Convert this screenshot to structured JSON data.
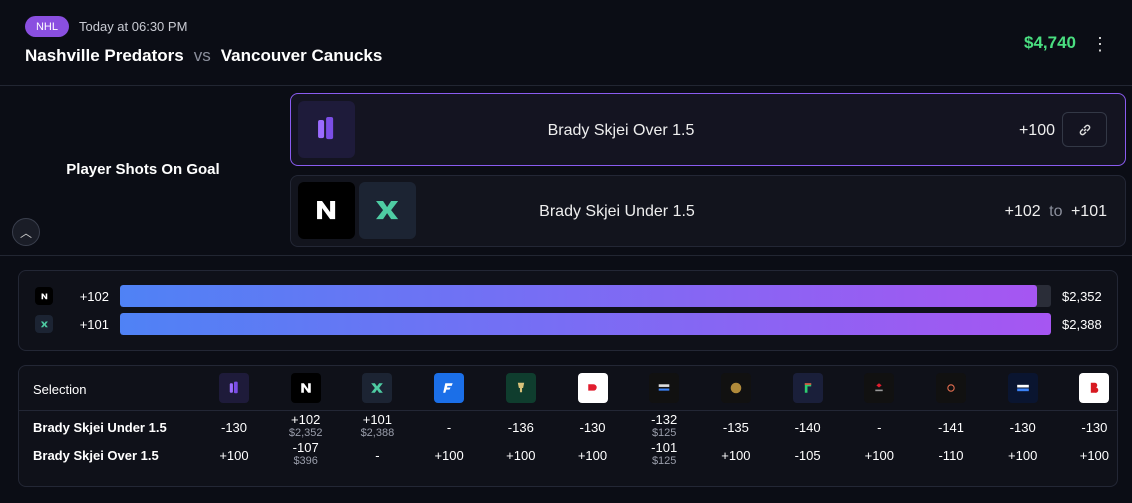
{
  "header": {
    "league": "NHL",
    "time": "Today at 06:30 PM",
    "home": "Nashville Predators",
    "vs": "vs",
    "away": "Vancouver Canucks",
    "amount": "$4,740"
  },
  "market": {
    "title": "Player Shots On Goal",
    "picks": [
      {
        "label": "Brady Skjei Over 1.5",
        "odds": "+100"
      },
      {
        "label": "Brady Skjei Under 1.5",
        "odds_from": "+102",
        "to": "to",
        "odds_to": "+101"
      }
    ]
  },
  "stakes": [
    {
      "odds": "+102",
      "value": 2352,
      "label": "$2,352"
    },
    {
      "odds": "+101",
      "value": 2388,
      "label": "$2,388"
    }
  ],
  "table": {
    "header": "Selection",
    "rows": [
      {
        "label": "Brady Skjei Under 1.5",
        "cells": [
          {
            "odds": "-130"
          },
          {
            "odds": "+102",
            "stake": "$2,352"
          },
          {
            "odds": "+101",
            "stake": "$2,388"
          },
          {
            "odds": "-"
          },
          {
            "odds": "-136"
          },
          {
            "odds": "-130"
          },
          {
            "odds": "-132",
            "stake": "$125"
          },
          {
            "odds": "-135"
          },
          {
            "odds": "-140"
          },
          {
            "odds": "-"
          },
          {
            "odds": "-141"
          },
          {
            "odds": "-130"
          },
          {
            "odds": "-130"
          }
        ]
      },
      {
        "label": "Brady Skjei Over 1.5",
        "cells": [
          {
            "odds": "+100"
          },
          {
            "odds": "-107",
            "stake": "$396"
          },
          {
            "odds": "-"
          },
          {
            "odds": "+100"
          },
          {
            "odds": "+100"
          },
          {
            "odds": "+100"
          },
          {
            "odds": "-101",
            "stake": "$125"
          },
          {
            "odds": "+100"
          },
          {
            "odds": "-105"
          },
          {
            "odds": "+100"
          },
          {
            "odds": "-110"
          },
          {
            "odds": "+100"
          },
          {
            "odds": "+100"
          }
        ]
      }
    ]
  }
}
